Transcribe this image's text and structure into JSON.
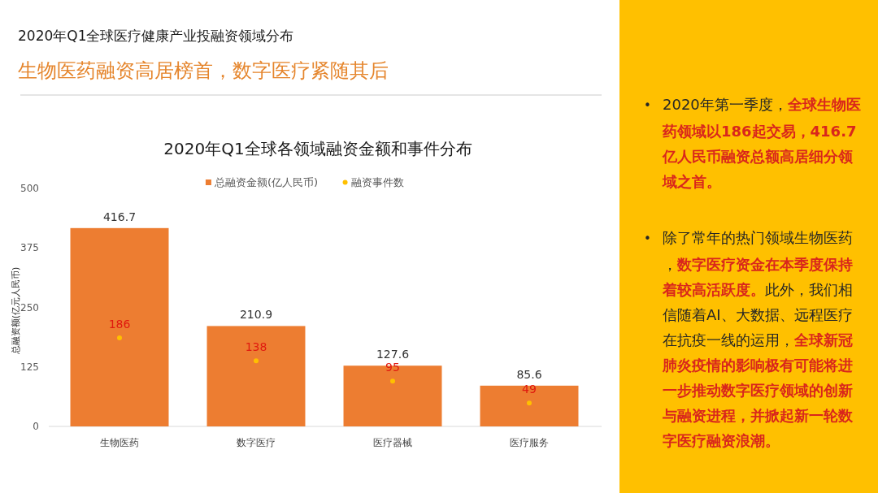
{
  "chart_data": [
    {
      "type": "bar",
      "title": "2020年Q1全球医疗健康产业投融资领域分布",
      "subtitle": "生物医药融资高居榜首，数字医疗紧随其后",
      "annotations": [
        "2020年Q1全球各领域融资金额和事件分布"
      ],
      "categories": [
        "生物医药",
        "数字医疗",
        "医疗器械",
        "医疗服务"
      ],
      "series": [
        {
          "name": "总融资金额(亿人民币)",
          "type": "bar",
          "color": "#ed7d31",
          "values": [
            416.7,
            210.9,
            127.6,
            85.6
          ]
        },
        {
          "name": "融资事件数",
          "type": "scatter",
          "color": "#ffc000",
          "values": [
            186,
            138,
            95,
            49
          ]
        }
      ],
      "ylabel": "总融资额(亿元人民币)",
      "ylim": [
        0,
        500
      ],
      "yticks": [
        0,
        125,
        250,
        375,
        500
      ],
      "data_labels": true,
      "legend": "top",
      "marker": "circle"
    },
    {
      "type": "other",
      "annotations": [
        "• 2020年第一季度，**全球生物医药领域以186起交易，416.7亿人民币融资总额高居细分领域之首。**",
        "• 除了常年的热门领域生物医药，**数字医疗资金在本季度保持着较高活跃度。**此外，我们相信随着AI、大数据、远程医疗在抗疫一线的运用，**全球新冠肺炎疫情的影响极有可能将进一步推动数字医疗领域的创新与融资进程，并掀起新一轮数字医疗融资浪潮。**"
      ]
    }
  ]
}
